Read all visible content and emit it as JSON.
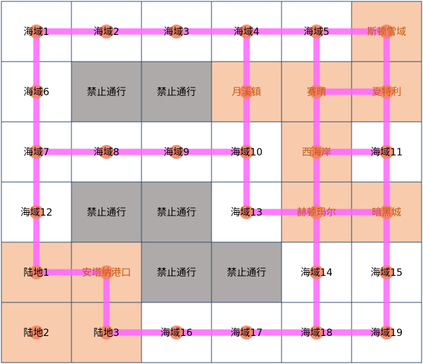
{
  "colors": {
    "sea": "#ffffff",
    "land": "#f8cbad",
    "forbidden": "#aeaaaa",
    "grid": "#2f4f6f",
    "route": "#ff66ff",
    "node": "#f4845f",
    "text_default": "#000000",
    "text_land": "#c55a11"
  },
  "grid": {
    "cols": 6,
    "rows": 6,
    "cells": [
      {
        "label": "海域1",
        "type": "sea"
      },
      {
        "label": "海域2",
        "type": "sea"
      },
      {
        "label": "海域3",
        "type": "sea"
      },
      {
        "label": "海域4",
        "type": "sea"
      },
      {
        "label": "海域5",
        "type": "sea"
      },
      {
        "label": "斯顿雪域",
        "type": "land",
        "text": "orange"
      },
      {
        "label": "海域6",
        "type": "sea"
      },
      {
        "label": "禁止通行",
        "type": "forbidden"
      },
      {
        "label": "禁止通行",
        "type": "forbidden"
      },
      {
        "label": "月溪镇",
        "type": "land",
        "text": "orange"
      },
      {
        "label": "赛晴",
        "type": "land",
        "text": "orange"
      },
      {
        "label": "夏特利",
        "type": "land",
        "text": "orange"
      },
      {
        "label": "海域7",
        "type": "sea"
      },
      {
        "label": "海域8",
        "type": "sea"
      },
      {
        "label": "海域9",
        "type": "sea"
      },
      {
        "label": "海域10",
        "type": "sea"
      },
      {
        "label": "西海岸",
        "type": "land",
        "text": "orange"
      },
      {
        "label": "海域11",
        "type": "sea"
      },
      {
        "label": "海域12",
        "type": "sea"
      },
      {
        "label": "禁止通行",
        "type": "forbidden"
      },
      {
        "label": "禁止通行",
        "type": "forbidden"
      },
      {
        "label": "海域13",
        "type": "sea"
      },
      {
        "label": "赫顿玛尔",
        "type": "land",
        "text": "orange"
      },
      {
        "label": "暗黑城",
        "type": "land",
        "text": "orange"
      },
      {
        "label": "陆地1",
        "type": "land"
      },
      {
        "label": "安塔纳港口",
        "type": "land",
        "text": "orange"
      },
      {
        "label": "禁止通行",
        "type": "forbidden"
      },
      {
        "label": "禁止通行",
        "type": "forbidden"
      },
      {
        "label": "海域14",
        "type": "sea"
      },
      {
        "label": "海域15",
        "type": "sea"
      },
      {
        "label": "陆地2",
        "type": "land"
      },
      {
        "label": "陆地3",
        "type": "land"
      },
      {
        "label": "海域16",
        "type": "sea"
      },
      {
        "label": "海域17",
        "type": "sea"
      },
      {
        "label": "海域18",
        "type": "sea"
      },
      {
        "label": "海域19",
        "type": "sea"
      }
    ]
  },
  "routes": [
    {
      "from": [
        0,
        0
      ],
      "to": [
        4,
        0
      ]
    },
    {
      "from": [
        4,
        0
      ],
      "to": [
        5,
        0
      ]
    },
    {
      "from": [
        0,
        0
      ],
      "to": [
        0,
        4
      ]
    },
    {
      "from": [
        0,
        2
      ],
      "to": [
        3,
        2
      ]
    },
    {
      "from": [
        3,
        0
      ],
      "to": [
        3,
        3
      ]
    },
    {
      "from": [
        3,
        3
      ],
      "to": [
        5,
        3
      ]
    },
    {
      "from": [
        4,
        0
      ],
      "to": [
        4,
        1
      ]
    },
    {
      "from": [
        4,
        1
      ],
      "to": [
        5,
        1
      ]
    },
    {
      "from": [
        5,
        0
      ],
      "to": [
        5,
        5
      ]
    },
    {
      "from": [
        4,
        2
      ],
      "to": [
        5,
        2
      ]
    },
    {
      "from": [
        4,
        1
      ],
      "to": [
        4,
        5
      ]
    },
    {
      "from": [
        0,
        4
      ],
      "to": [
        1,
        4
      ]
    },
    {
      "from": [
        1,
        4
      ],
      "to": [
        1,
        5
      ]
    },
    {
      "from": [
        1,
        5
      ],
      "to": [
        5,
        5
      ]
    }
  ],
  "nodes": [
    [
      0,
      0
    ],
    [
      1,
      0
    ],
    [
      2,
      0
    ],
    [
      3,
      0
    ],
    [
      4,
      0
    ],
    [
      5,
      0
    ],
    [
      0,
      1
    ],
    [
      3,
      1
    ],
    [
      4,
      1
    ],
    [
      5,
      1
    ],
    [
      0,
      2
    ],
    [
      1,
      2
    ],
    [
      2,
      2
    ],
    [
      3,
      2
    ],
    [
      4,
      2
    ],
    [
      5,
      2
    ],
    [
      0,
      3
    ],
    [
      3,
      3
    ],
    [
      4,
      3
    ],
    [
      5,
      3
    ],
    [
      0,
      4
    ],
    [
      1,
      4
    ],
    [
      4,
      4
    ],
    [
      5,
      4
    ],
    [
      0,
      5
    ],
    [
      1,
      5
    ],
    [
      2,
      5
    ],
    [
      3,
      5
    ],
    [
      4,
      5
    ],
    [
      5,
      5
    ]
  ]
}
